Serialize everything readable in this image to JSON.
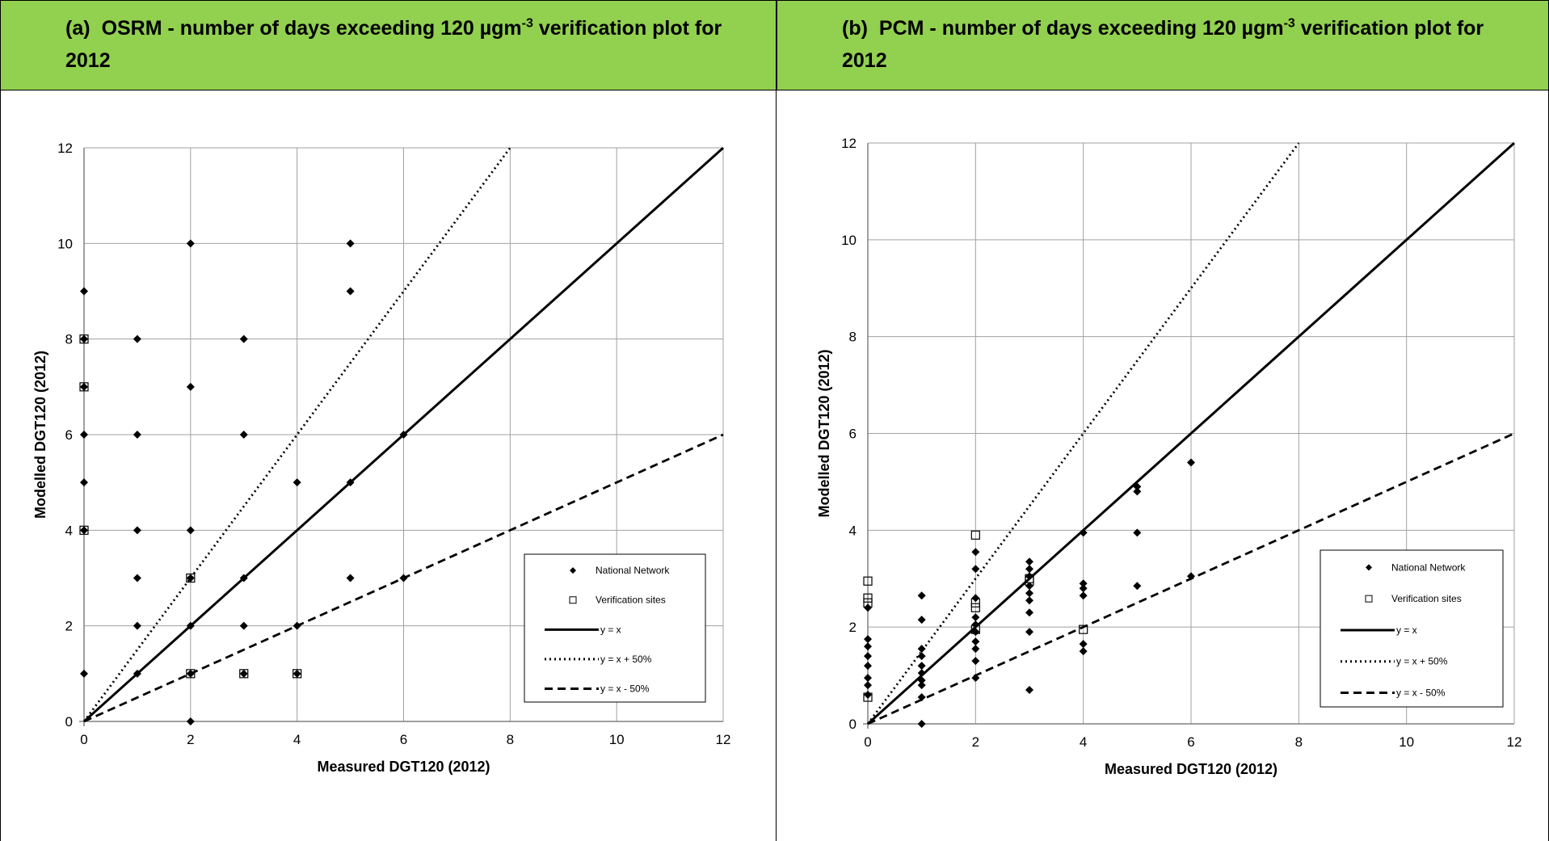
{
  "headers": {
    "left": {
      "label": "(a)",
      "title_pre": "OSRM - number of days exceeding 120 µgm",
      "sup": "-3",
      "title_post": " verification plot for",
      "title_line2": "2012"
    },
    "right": {
      "label": "(b)",
      "title_pre": "PCM - number of days exceeding 120 µgm",
      "sup": "-3",
      "title_post": " verification plot for",
      "title_line2": "2012"
    }
  },
  "chart_data": [
    {
      "type": "scatter",
      "xlabel": "Measured DGT120 (2012)",
      "ylabel": "Modelled DGT120 (2012)",
      "xlim": [
        0,
        12
      ],
      "ylim": [
        0,
        12
      ],
      "xticks": [
        "0",
        "2",
        "4",
        "6",
        "8",
        "10",
        "12"
      ],
      "yticks": [
        "0",
        "2",
        "4",
        "6",
        "8",
        "10",
        "12"
      ],
      "grid": true,
      "legend_position": "lower-right",
      "legend": [
        "National Network",
        "Verification sites",
        "y = x",
        "y = x + 50%",
        "y = x - 50%"
      ],
      "series": [
        {
          "name": "National Network",
          "marker": "diamond",
          "points": [
            [
              0,
              1
            ],
            [
              0,
              4
            ],
            [
              0,
              5
            ],
            [
              0,
              6
            ],
            [
              0,
              7
            ],
            [
              0,
              8
            ],
            [
              0,
              9
            ],
            [
              1,
              1
            ],
            [
              1,
              2
            ],
            [
              1,
              3
            ],
            [
              1,
              4
            ],
            [
              1,
              6
            ],
            [
              1,
              8
            ],
            [
              2,
              0
            ],
            [
              2,
              1
            ],
            [
              2,
              2
            ],
            [
              2,
              3
            ],
            [
              2,
              4
            ],
            [
              2,
              7
            ],
            [
              2,
              10
            ],
            [
              3,
              1
            ],
            [
              3,
              2
            ],
            [
              3,
              3
            ],
            [
              3,
              6
            ],
            [
              3,
              8
            ],
            [
              4,
              1
            ],
            [
              4,
              2
            ],
            [
              4,
              5
            ],
            [
              5,
              3
            ],
            [
              5,
              5
            ],
            [
              5,
              9
            ],
            [
              5,
              10
            ],
            [
              6,
              3
            ],
            [
              6,
              6
            ]
          ]
        },
        {
          "name": "Verification sites",
          "marker": "square",
          "points": [
            [
              0,
              4
            ],
            [
              0,
              7
            ],
            [
              0,
              8
            ],
            [
              2,
              1
            ],
            [
              2,
              3
            ],
            [
              3,
              1
            ],
            [
              4,
              1
            ]
          ]
        }
      ],
      "lines": [
        {
          "name": "y = x",
          "style": "solid",
          "slope": 1
        },
        {
          "name": "y = x + 50%",
          "style": "dotted",
          "slope": 1.5
        },
        {
          "name": "y = x - 50%",
          "style": "dashed",
          "slope": 0.5
        }
      ]
    },
    {
      "type": "scatter",
      "xlabel": "Measured DGT120 (2012)",
      "ylabel": "Modelled DGT120 (2012)",
      "xlim": [
        0,
        12
      ],
      "ylim": [
        0,
        12
      ],
      "xticks": [
        "0",
        "2",
        "4",
        "6",
        "8",
        "10",
        "12"
      ],
      "yticks": [
        "0",
        "2",
        "4",
        "6",
        "8",
        "10",
        "12"
      ],
      "grid": true,
      "legend_position": "lower-right",
      "legend": [
        "National Network",
        "Verification sites",
        "y = x",
        "y = x + 50%",
        "y = x - 50%"
      ],
      "series": [
        {
          "name": "National Network",
          "marker": "diamond",
          "points": [
            [
              0,
              0.6
            ],
            [
              0,
              0.8
            ],
            [
              0,
              0.95
            ],
            [
              0,
              1.2
            ],
            [
              0,
              1.4
            ],
            [
              0,
              1.6
            ],
            [
              0,
              1.75
            ],
            [
              0,
              2.4
            ],
            [
              1,
              0
            ],
            [
              1,
              0.55
            ],
            [
              1,
              0.8
            ],
            [
              1,
              0.9
            ],
            [
              1,
              1.05
            ],
            [
              1,
              1.2
            ],
            [
              1,
              1.4
            ],
            [
              1,
              1.55
            ],
            [
              1,
              2.15
            ],
            [
              1,
              2.65
            ],
            [
              2,
              0.95
            ],
            [
              2,
              1.3
            ],
            [
              2,
              1.55
            ],
            [
              2,
              1.7
            ],
            [
              2,
              1.9
            ],
            [
              2,
              2.05
            ],
            [
              2,
              2.2
            ],
            [
              2,
              2.6
            ],
            [
              2,
              3.2
            ],
            [
              2,
              3.55
            ],
            [
              3,
              0.7
            ],
            [
              3,
              1.9
            ],
            [
              3,
              2.3
            ],
            [
              3,
              2.55
            ],
            [
              3,
              2.7
            ],
            [
              3,
              2.85
            ],
            [
              3,
              3.05
            ],
            [
              3,
              3.2
            ],
            [
              3,
              3.35
            ],
            [
              4,
              1.5
            ],
            [
              4,
              1.65
            ],
            [
              4,
              2.65
            ],
            [
              4,
              2.8
            ],
            [
              4,
              2.9
            ],
            [
              4,
              3.95
            ],
            [
              5,
              2.85
            ],
            [
              5,
              3.95
            ],
            [
              5,
              4.8
            ],
            [
              5,
              4.9
            ],
            [
              6,
              3.05
            ],
            [
              6,
              5.4
            ]
          ]
        },
        {
          "name": "Verification sites",
          "marker": "square",
          "points": [
            [
              0,
              0.55
            ],
            [
              0,
              2.5
            ],
            [
              0,
              2.6
            ],
            [
              0,
              2.95
            ],
            [
              2,
              1.95
            ],
            [
              2,
              2.4
            ],
            [
              2,
              2.5
            ],
            [
              2,
              3.9
            ],
            [
              3,
              2.95
            ],
            [
              3,
              3.0
            ],
            [
              4,
              1.95
            ]
          ]
        }
      ],
      "lines": [
        {
          "name": "y = x",
          "style": "solid",
          "slope": 1
        },
        {
          "name": "y = x + 50%",
          "style": "dotted",
          "slope": 1.5
        },
        {
          "name": "y = x - 50%",
          "style": "dashed",
          "slope": 0.5
        }
      ]
    }
  ]
}
